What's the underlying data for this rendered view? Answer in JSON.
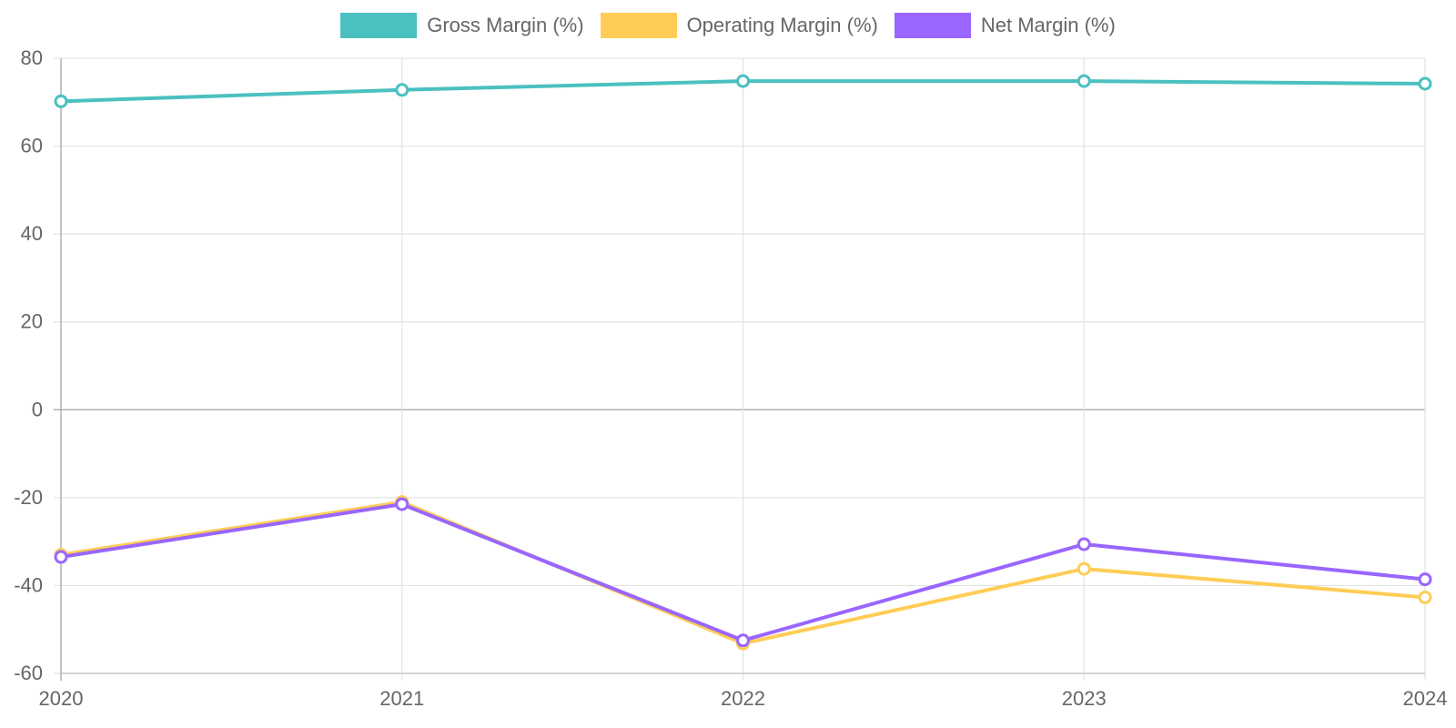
{
  "chart_data": {
    "type": "line",
    "categories": [
      "2020",
      "2021",
      "2022",
      "2023",
      "2024"
    ],
    "series": [
      {
        "name": "Gross Margin (%)",
        "color": "#4BC0C0",
        "values": [
          70.2,
          72.8,
          74.8,
          74.8,
          74.2
        ]
      },
      {
        "name": "Operating Margin (%)",
        "color": "#FFCD56",
        "values": [
          -33.0,
          -21.0,
          -53.2,
          -36.2,
          -42.7
        ]
      },
      {
        "name": "Net Margin (%)",
        "color": "#9966FF",
        "values": [
          -33.5,
          -21.5,
          -52.5,
          -30.6,
          -38.6
        ]
      }
    ],
    "yticks": [
      -60,
      -40,
      -20,
      0,
      20,
      40,
      60,
      80
    ],
    "ylim": [
      -60,
      80
    ],
    "title": "",
    "xlabel": "",
    "ylabel": "",
    "grid": true,
    "legend_position": "top"
  }
}
